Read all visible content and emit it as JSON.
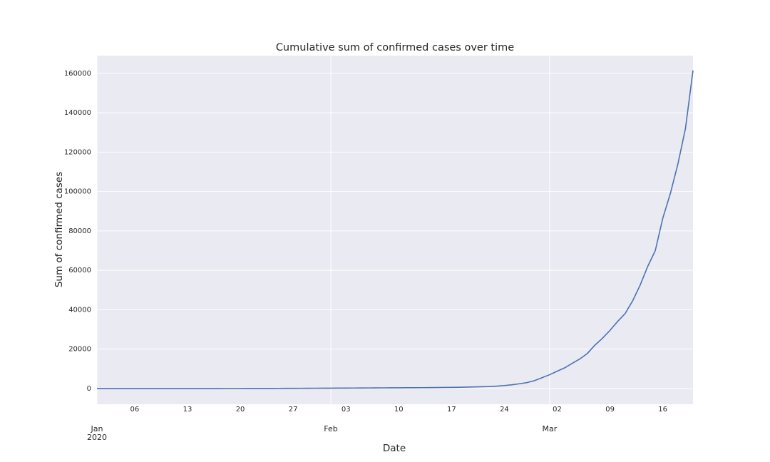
{
  "chart_data": {
    "type": "line",
    "title": "Cumulative sum of confirmed cases over time",
    "xlabel": "Date",
    "ylabel": "Sum of confirmed cases",
    "x": [
      "2020-01-01",
      "2020-01-02",
      "2020-01-03",
      "2020-01-04",
      "2020-01-05",
      "2020-01-06",
      "2020-01-07",
      "2020-01-08",
      "2020-01-09",
      "2020-01-10",
      "2020-01-11",
      "2020-01-12",
      "2020-01-13",
      "2020-01-14",
      "2020-01-15",
      "2020-01-16",
      "2020-01-17",
      "2020-01-18",
      "2020-01-19",
      "2020-01-20",
      "2020-01-21",
      "2020-01-22",
      "2020-01-23",
      "2020-01-24",
      "2020-01-25",
      "2020-01-26",
      "2020-01-27",
      "2020-01-28",
      "2020-01-29",
      "2020-01-30",
      "2020-01-31",
      "2020-02-01",
      "2020-02-02",
      "2020-02-03",
      "2020-02-04",
      "2020-02-05",
      "2020-02-06",
      "2020-02-07",
      "2020-02-08",
      "2020-02-09",
      "2020-02-10",
      "2020-02-11",
      "2020-02-12",
      "2020-02-13",
      "2020-02-14",
      "2020-02-15",
      "2020-02-16",
      "2020-02-17",
      "2020-02-18",
      "2020-02-19",
      "2020-02-20",
      "2020-02-21",
      "2020-02-22",
      "2020-02-23",
      "2020-02-24",
      "2020-02-25",
      "2020-02-26",
      "2020-02-27",
      "2020-02-28",
      "2020-02-29",
      "2020-03-01",
      "2020-03-02",
      "2020-03-03",
      "2020-03-04",
      "2020-03-05",
      "2020-03-06",
      "2020-03-07",
      "2020-03-08",
      "2020-03-09",
      "2020-03-10",
      "2020-03-11",
      "2020-03-12",
      "2020-03-13",
      "2020-03-14",
      "2020-03-15",
      "2020-03-16",
      "2020-03-17",
      "2020-03-18",
      "2020-03-19",
      "2020-03-20"
    ],
    "series": [
      {
        "name": "Sum of confirmed cases",
        "color": "#4c72b0",
        "values": [
          0,
          0,
          0,
          0,
          0,
          0,
          0,
          0,
          0,
          0,
          1,
          1,
          1,
          2,
          2,
          3,
          4,
          5,
          7,
          10,
          15,
          20,
          30,
          40,
          55,
          70,
          85,
          100,
          120,
          140,
          160,
          180,
          200,
          220,
          240,
          260,
          280,
          300,
          320,
          340,
          360,
          380,
          400,
          420,
          450,
          480,
          520,
          560,
          620,
          700,
          800,
          900,
          1000,
          1200,
          1500,
          1900,
          2400,
          3000,
          4000,
          5500,
          7000,
          8800,
          10500,
          12800,
          15000,
          17800,
          22000,
          25500,
          29500,
          34000,
          38000,
          44500,
          52500,
          62000,
          70000,
          86500,
          99000,
          114000,
          132000,
          161500
        ]
      }
    ],
    "xlim": [
      "2020-01-01",
      "2020-03-20"
    ],
    "xticks": [
      {
        "value": "2020-01-01",
        "label": "Jan",
        "year": "2020"
      },
      {
        "value": "2020-02-01",
        "label": "Feb"
      },
      {
        "value": "2020-03-01",
        "label": "Mar"
      }
    ],
    "xticks_minor": [
      {
        "value": "2020-01-06",
        "label": "06"
      },
      {
        "value": "2020-01-13",
        "label": "13"
      },
      {
        "value": "2020-01-20",
        "label": "20"
      },
      {
        "value": "2020-01-27",
        "label": "27"
      },
      {
        "value": "2020-02-03",
        "label": "03"
      },
      {
        "value": "2020-02-10",
        "label": "10"
      },
      {
        "value": "2020-02-17",
        "label": "17"
      },
      {
        "value": "2020-02-24",
        "label": "24"
      },
      {
        "value": "2020-03-02",
        "label": "02"
      },
      {
        "value": "2020-03-09",
        "label": "09"
      },
      {
        "value": "2020-03-16",
        "label": "16"
      }
    ],
    "ylim": [
      -8000,
      169000
    ],
    "yticks": [
      0,
      20000,
      40000,
      60000,
      80000,
      100000,
      120000,
      140000,
      160000
    ],
    "grid": true
  }
}
